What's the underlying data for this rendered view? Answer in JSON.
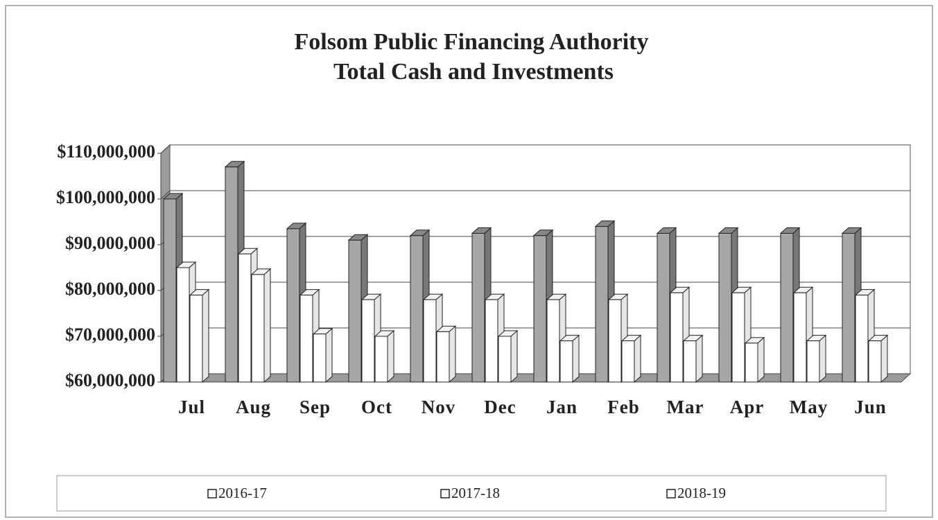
{
  "chart_data": {
    "type": "bar3d",
    "title": "Folsom Public Financing Authority",
    "subtitle": "Total Cash and Investments",
    "categories": [
      "Jul",
      "Aug",
      "Sep",
      "Oct",
      "Nov",
      "Dec",
      "Jan",
      "Feb",
      "Mar",
      "Apr",
      "May",
      "Jun"
    ],
    "series": [
      {
        "name": "2016-17",
        "color": "#a6a6a6",
        "values": [
          100000000,
          107000000,
          93500000,
          91000000,
          92000000,
          92500000,
          92000000,
          94000000,
          92500000,
          92500000,
          92500000,
          92500000
        ]
      },
      {
        "name": "2017-18",
        "color": "#ffffff",
        "values": [
          85000000,
          88000000,
          79000000,
          78000000,
          78000000,
          78000000,
          78000000,
          78000000,
          79500000,
          79500000,
          79500000,
          79000000
        ]
      },
      {
        "name": "2018-19",
        "color": "#ffffff",
        "values": [
          79000000,
          83500000,
          70500000,
          70000000,
          71000000,
          70000000,
          69000000,
          69000000,
          69000000,
          68500000,
          69000000,
          69000000
        ]
      }
    ],
    "ylim": [
      60000000,
      110000000
    ],
    "yticks": [
      {
        "value": 60000000,
        "label": "$60,000,000"
      },
      {
        "value": 70000000,
        "label": "$70,000,000"
      },
      {
        "value": 80000000,
        "label": "$80,000,000"
      },
      {
        "value": 90000000,
        "label": "$90,000,000"
      },
      {
        "value": 100000000,
        "label": "$100,000,000"
      },
      {
        "value": 110000000,
        "label": "$110,000,000"
      }
    ],
    "grid": true
  }
}
